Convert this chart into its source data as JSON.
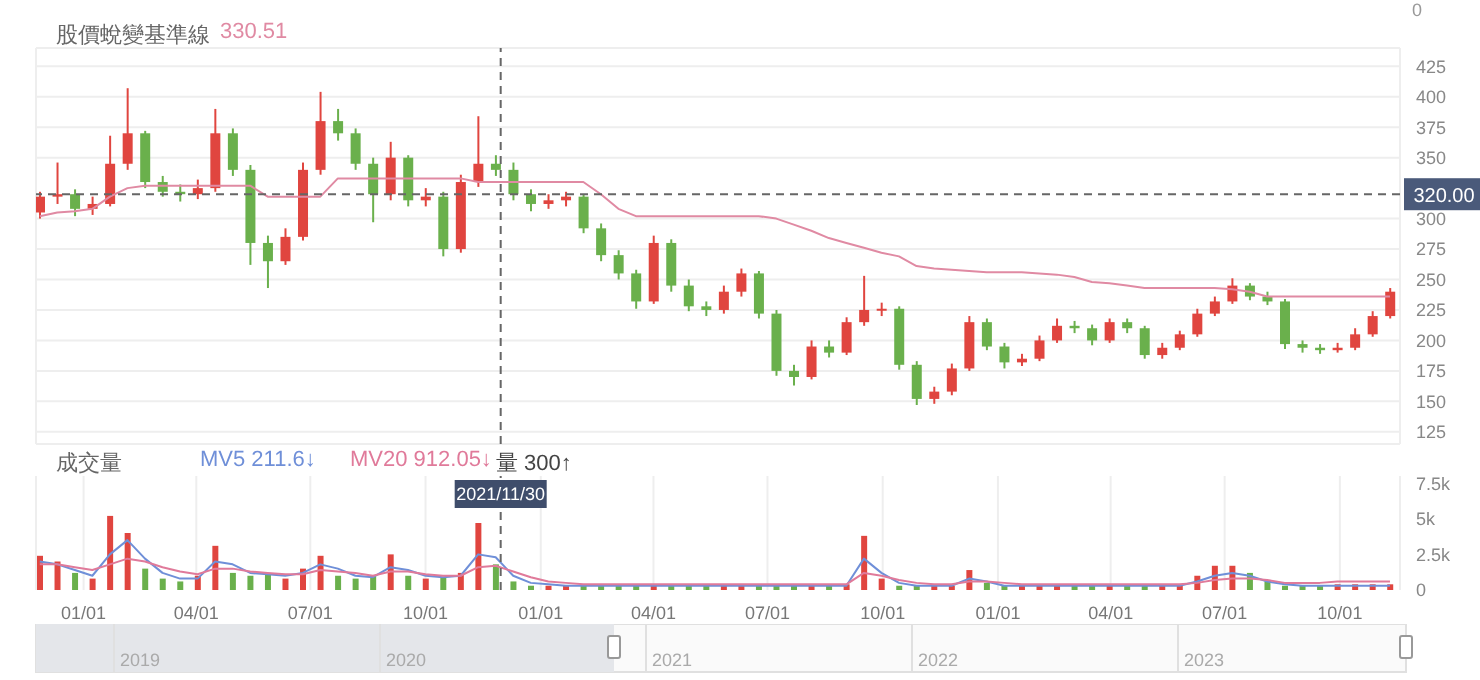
{
  "chart_data": [
    {
      "type": "candlestick",
      "title": "股價蛻變基準線",
      "annotations": [
        "330.51",
        "0"
      ],
      "x": [
        "2020-11-27",
        "2020-12-11",
        "2020-12-25",
        "2021-01-08",
        "2021-01-22",
        "2021-02-05",
        "2021-02-19",
        "2021-03-05",
        "2021-03-19",
        "2021-04-02",
        "2021-04-16",
        "2021-04-30",
        "2021-05-14",
        "2021-05-28",
        "2021-06-11",
        "2021-06-25",
        "2021-07-09",
        "2021-07-23",
        "2021-08-06",
        "2021-08-20",
        "2021-09-03",
        "2021-09-17",
        "2021-10-01",
        "2021-10-15",
        "2021-10-29",
        "2021-11-12",
        "2021-11-26",
        "2021-12-10",
        "2021-12-24",
        "2022-01-07",
        "2022-01-21",
        "2022-02-04",
        "2022-02-18",
        "2022-03-04",
        "2022-03-18",
        "2022-04-01",
        "2022-04-15",
        "2022-04-29",
        "2022-05-13",
        "2022-05-27",
        "2022-06-10",
        "2022-06-24",
        "2022-07-08",
        "2022-07-22",
        "2022-08-05",
        "2022-08-19",
        "2022-09-02",
        "2022-09-16",
        "2022-09-30",
        "2022-10-14",
        "2022-10-28",
        "2022-11-11",
        "2022-11-25",
        "2022-12-09",
        "2022-12-23",
        "2023-01-06",
        "2023-01-20",
        "2023-02-03",
        "2023-02-17",
        "2023-03-03",
        "2023-03-17",
        "2023-03-31",
        "2023-04-14",
        "2023-04-28",
        "2023-05-12",
        "2023-05-26",
        "2023-06-09",
        "2023-06-23",
        "2023-07-07",
        "2023-07-21",
        "2023-08-04",
        "2023-08-18",
        "2023-09-01",
        "2023-09-15",
        "2023-09-29",
        "2023-10-13",
        "2023-10-27",
        "2023-11-10"
      ],
      "ohlc": [
        [
          305,
          322,
          300,
          318
        ],
        [
          318,
          346,
          312,
          320
        ],
        [
          320,
          324,
          302,
          308
        ],
        [
          308,
          318,
          303,
          312
        ],
        [
          312,
          368,
          310,
          345
        ],
        [
          345,
          407,
          340,
          370
        ],
        [
          370,
          372,
          325,
          330
        ],
        [
          330,
          335,
          318,
          322
        ],
        [
          322,
          328,
          314,
          320
        ],
        [
          320,
          332,
          316,
          325
        ],
        [
          325,
          390,
          322,
          370
        ],
        [
          370,
          374,
          335,
          340
        ],
        [
          340,
          344,
          262,
          280
        ],
        [
          280,
          286,
          243,
          265
        ],
        [
          265,
          292,
          262,
          285
        ],
        [
          285,
          346,
          282,
          340
        ],
        [
          340,
          404,
          336,
          380
        ],
        [
          380,
          390,
          364,
          370
        ],
        [
          370,
          374,
          340,
          345
        ],
        [
          345,
          350,
          297,
          320
        ],
        [
          320,
          363,
          315,
          350
        ],
        [
          350,
          352,
          310,
          315
        ],
        [
          315,
          325,
          310,
          318
        ],
        [
          318,
          322,
          269,
          275
        ],
        [
          275,
          336,
          272,
          330
        ],
        [
          330,
          384,
          326,
          345
        ],
        [
          345,
          352,
          335,
          340
        ],
        [
          340,
          346,
          315,
          320
        ],
        [
          320,
          324,
          306,
          312
        ],
        [
          312,
          320,
          308,
          315
        ],
        [
          315,
          322,
          310,
          318
        ],
        [
          318,
          320,
          288,
          292
        ],
        [
          292,
          296,
          265,
          270
        ],
        [
          270,
          274,
          250,
          255
        ],
        [
          255,
          258,
          226,
          232
        ],
        [
          232,
          286,
          230,
          280
        ],
        [
          280,
          283,
          240,
          245
        ],
        [
          245,
          250,
          224,
          228
        ],
        [
          228,
          232,
          220,
          225
        ],
        [
          225,
          245,
          222,
          240
        ],
        [
          240,
          259,
          236,
          255
        ],
        [
          255,
          257,
          218,
          222
        ],
        [
          222,
          225,
          171,
          175
        ],
        [
          175,
          180,
          163,
          170
        ],
        [
          170,
          200,
          168,
          195
        ],
        [
          195,
          200,
          186,
          190
        ],
        [
          190,
          219,
          188,
          215
        ],
        [
          215,
          253,
          212,
          225
        ],
        [
          225,
          231,
          220,
          226
        ],
        [
          226,
          228,
          176,
          180
        ],
        [
          180,
          183,
          147,
          152
        ],
        [
          152,
          162,
          148,
          158
        ],
        [
          158,
          181,
          155,
          177
        ],
        [
          177,
          220,
          175,
          215
        ],
        [
          215,
          218,
          192,
          195
        ],
        [
          195,
          198,
          177,
          182
        ],
        [
          182,
          189,
          179,
          185
        ],
        [
          185,
          204,
          183,
          200
        ],
        [
          200,
          218,
          198,
          212
        ],
        [
          212,
          216,
          206,
          210
        ],
        [
          210,
          213,
          196,
          200
        ],
        [
          200,
          218,
          198,
          215
        ],
        [
          215,
          218,
          206,
          210
        ],
        [
          210,
          212,
          185,
          188
        ],
        [
          188,
          198,
          185,
          194
        ],
        [
          194,
          208,
          192,
          205
        ],
        [
          205,
          226,
          203,
          222
        ],
        [
          222,
          236,
          220,
          232
        ],
        [
          232,
          251,
          230,
          245
        ],
        [
          245,
          247,
          233,
          236
        ],
        [
          236,
          240,
          229,
          232
        ],
        [
          232,
          234,
          193,
          197
        ],
        [
          197,
          200,
          190,
          194
        ],
        [
          194,
          197,
          189,
          192
        ],
        [
          192,
          198,
          190,
          194
        ],
        [
          194,
          210,
          192,
          205
        ],
        [
          205,
          224,
          203,
          220
        ],
        [
          220,
          243,
          218,
          240
        ]
      ],
      "colors": [
        "#e0453f",
        "#e0453f",
        "#6ab04c",
        "#e0453f",
        "#e0453f",
        "#e0453f",
        "#6ab04c",
        "#6ab04c",
        "#6ab04c",
        "#e0453f",
        "#e0453f",
        "#6ab04c",
        "#6ab04c",
        "#6ab04c",
        "#e0453f",
        "#e0453f",
        "#e0453f",
        "#6ab04c",
        "#6ab04c",
        "#6ab04c",
        "#e0453f",
        "#6ab04c",
        "#e0453f",
        "#6ab04c",
        "#e0453f",
        "#e0453f",
        "#6ab04c",
        "#6ab04c",
        "#6ab04c",
        "#e0453f",
        "#e0453f",
        "#6ab04c",
        "#6ab04c",
        "#6ab04c",
        "#6ab04c",
        "#e0453f",
        "#6ab04c",
        "#6ab04c",
        "#6ab04c",
        "#e0453f",
        "#e0453f",
        "#6ab04c",
        "#6ab04c",
        "#6ab04c",
        "#e0453f",
        "#6ab04c",
        "#e0453f",
        "#e0453f",
        "#e0453f",
        "#6ab04c",
        "#6ab04c",
        "#e0453f",
        "#e0453f",
        "#e0453f",
        "#6ab04c",
        "#6ab04c",
        "#e0453f",
        "#e0453f",
        "#e0453f",
        "#6ab04c",
        "#6ab04c",
        "#e0453f",
        "#6ab04c",
        "#6ab04c",
        "#e0453f",
        "#e0453f",
        "#e0453f",
        "#e0453f",
        "#e0453f",
        "#6ab04c",
        "#6ab04c",
        "#6ab04c",
        "#6ab04c",
        "#6ab04c",
        "#e0453f",
        "#e0453f",
        "#e0453f",
        "#e0453f"
      ],
      "series": [
        {
          "type": "line",
          "color": "#e08aa3",
          "values": [
            302,
            305,
            306,
            308,
            318,
            325,
            327,
            327,
            327,
            327,
            327,
            327,
            327,
            318,
            318,
            318,
            318,
            333,
            333,
            333,
            333,
            333,
            333,
            333,
            333,
            330,
            330,
            330,
            330,
            330,
            330,
            330,
            320,
            308,
            302,
            302,
            302,
            302,
            302,
            302,
            302,
            302,
            300,
            295,
            290,
            284,
            280,
            276,
            272,
            269,
            261,
            259,
            258,
            257,
            256,
            256,
            256,
            255,
            254,
            252,
            248,
            247,
            245,
            243,
            243,
            243,
            243,
            243,
            242,
            240,
            236,
            236,
            236,
            236,
            236,
            236,
            236,
            236
          ]
        }
      ],
      "xlim": [
        "2020-11-24",
        "2023-11-18"
      ],
      "xticks": [
        {
          "value": "2021-01-01",
          "label": null
        },
        {
          "value": "2021-04-01",
          "label": null
        },
        {
          "value": "2021-07-01",
          "label": null
        },
        {
          "value": "2021-10-01",
          "label": null
        },
        {
          "value": "2022-01-01",
          "label": null
        },
        {
          "value": "2022-04-01",
          "label": null
        },
        {
          "value": "2022-07-01",
          "label": null
        },
        {
          "value": "2022-10-01",
          "label": null
        },
        {
          "value": "2023-01-01",
          "label": null
        },
        {
          "value": "2023-04-01",
          "label": null
        },
        {
          "value": "2023-07-01",
          "label": null
        },
        {
          "value": "2023-10-01",
          "label": null
        }
      ],
      "tick_labels": "y",
      "ylim": [
        115,
        440
      ],
      "yticks": [
        125,
        150,
        175,
        200,
        225,
        250,
        275,
        300,
        350,
        375,
        400,
        425
      ],
      "grid": true,
      "ref_lines": [
        {
          "axis": "y",
          "value": 320,
          "label": "320.00",
          "line_style": "dashed"
        },
        {
          "axis": "x",
          "value": "2021-11-30",
          "line_style": "dashed"
        }
      ]
    },
    {
      "type": "bar",
      "title": "成交量",
      "annotations": [
        "MV5 211.6↓",
        "MV20 912.05↓",
        "量 300↑",
        "2019",
        "2020",
        "2021",
        "2022",
        "2023"
      ],
      "x": [
        "2020-11-27",
        "2020-12-11",
        "2020-12-25",
        "2021-01-08",
        "2021-01-22",
        "2021-02-05",
        "2021-02-19",
        "2021-03-05",
        "2021-03-19",
        "2021-04-02",
        "2021-04-16",
        "2021-04-30",
        "2021-05-14",
        "2021-05-28",
        "2021-06-11",
        "2021-06-25",
        "2021-07-09",
        "2021-07-23",
        "2021-08-06",
        "2021-08-20",
        "2021-09-03",
        "2021-09-17",
        "2021-10-01",
        "2021-10-15",
        "2021-10-29",
        "2021-11-12",
        "2021-11-26",
        "2021-12-10",
        "2021-12-24",
        "2022-01-07",
        "2022-01-21",
        "2022-02-04",
        "2022-02-18",
        "2022-03-04",
        "2022-03-18",
        "2022-04-01",
        "2022-04-15",
        "2022-04-29",
        "2022-05-13",
        "2022-05-27",
        "2022-06-10",
        "2022-06-24",
        "2022-07-08",
        "2022-07-22",
        "2022-08-05",
        "2022-08-19",
        "2022-09-02",
        "2022-09-16",
        "2022-09-30",
        "2022-10-14",
        "2022-10-28",
        "2022-11-11",
        "2022-11-25",
        "2022-12-09",
        "2022-12-23",
        "2023-01-06",
        "2023-01-20",
        "2023-02-03",
        "2023-02-17",
        "2023-03-03",
        "2023-03-17",
        "2023-03-31",
        "2023-04-14",
        "2023-04-28",
        "2023-05-12",
        "2023-05-26",
        "2023-06-09",
        "2023-06-23",
        "2023-07-07",
        "2023-07-21",
        "2023-08-04",
        "2023-08-18",
        "2023-09-01",
        "2023-09-15",
        "2023-09-29",
        "2023-10-13",
        "2023-10-27",
        "2023-11-10"
      ],
      "series": [
        {
          "type": "bar",
          "colors": [
            "#e0453f",
            "#e0453f",
            "#6ab04c",
            "#e0453f",
            "#e0453f",
            "#e0453f",
            "#6ab04c",
            "#6ab04c",
            "#6ab04c",
            "#e0453f",
            "#e0453f",
            "#6ab04c",
            "#6ab04c",
            "#6ab04c",
            "#e0453f",
            "#e0453f",
            "#e0453f",
            "#6ab04c",
            "#6ab04c",
            "#6ab04c",
            "#e0453f",
            "#6ab04c",
            "#e0453f",
            "#6ab04c",
            "#e0453f",
            "#e0453f",
            "#6ab04c",
            "#6ab04c",
            "#6ab04c",
            "#e0453f",
            "#e0453f",
            "#6ab04c",
            "#6ab04c",
            "#6ab04c",
            "#6ab04c",
            "#e0453f",
            "#6ab04c",
            "#6ab04c",
            "#6ab04c",
            "#e0453f",
            "#e0453f",
            "#6ab04c",
            "#6ab04c",
            "#6ab04c",
            "#e0453f",
            "#6ab04c",
            "#e0453f",
            "#e0453f",
            "#e0453f",
            "#6ab04c",
            "#6ab04c",
            "#e0453f",
            "#e0453f",
            "#e0453f",
            "#6ab04c",
            "#6ab04c",
            "#e0453f",
            "#e0453f",
            "#e0453f",
            "#6ab04c",
            "#6ab04c",
            "#e0453f",
            "#6ab04c",
            "#6ab04c",
            "#e0453f",
            "#e0453f",
            "#e0453f",
            "#e0453f",
            "#e0453f",
            "#6ab04c",
            "#6ab04c",
            "#6ab04c",
            "#6ab04c",
            "#6ab04c",
            "#e0453f",
            "#e0453f",
            "#e0453f",
            "#e0453f"
          ],
          "values": [
            2400,
            2000,
            1200,
            800,
            5200,
            4000,
            1500,
            800,
            600,
            1000,
            3100,
            1200,
            1000,
            1200,
            800,
            1500,
            2400,
            1000,
            800,
            1000,
            2500,
            1000,
            800,
            900,
            1200,
            4700,
            1800,
            600,
            300,
            300,
            300,
            300,
            300,
            300,
            300,
            300,
            300,
            300,
            300,
            400,
            300,
            300,
            300,
            300,
            300,
            300,
            400,
            3800,
            800,
            300,
            300,
            300,
            300,
            1400,
            500,
            300,
            300,
            300,
            300,
            300,
            300,
            300,
            300,
            300,
            300,
            300,
            1000,
            1700,
            1700,
            1200,
            600,
            300,
            300,
            300,
            400,
            400,
            400,
            400
          ]
        },
        {
          "type": "line",
          "color": "#6f8fd8",
          "values": [
            2000,
            1800,
            1400,
            1000,
            2500,
            3500,
            2200,
            1200,
            800,
            800,
            2000,
            1800,
            1200,
            1100,
            1000,
            1200,
            1800,
            1500,
            1000,
            900,
            1600,
            1400,
            1000,
            900,
            1000,
            2500,
            2300,
            1000,
            500,
            400,
            300,
            300,
            300,
            300,
            300,
            300,
            300,
            300,
            300,
            300,
            300,
            300,
            300,
            300,
            300,
            300,
            300,
            2200,
            1200,
            500,
            300,
            300,
            300,
            800,
            600,
            300,
            300,
            300,
            300,
            300,
            300,
            300,
            300,
            300,
            300,
            300,
            600,
            1000,
            1200,
            1000,
            600,
            400,
            300,
            300,
            300,
            300,
            300,
            300
          ]
        },
        {
          "type": "line",
          "color": "#e07a9a",
          "values": [
            1800,
            1800,
            1600,
            1400,
            1800,
            2200,
            2000,
            1600,
            1300,
            1100,
            1500,
            1500,
            1300,
            1200,
            1100,
            1100,
            1400,
            1300,
            1200,
            1000,
            1300,
            1300,
            1100,
            1000,
            1000,
            1600,
            1700,
            1300,
            900,
            600,
            500,
            400,
            400,
            400,
            400,
            400,
            400,
            400,
            400,
            400,
            400,
            400,
            400,
            400,
            400,
            400,
            400,
            1200,
            1000,
            700,
            500,
            400,
            400,
            600,
            600,
            500,
            400,
            400,
            400,
            400,
            400,
            400,
            400,
            400,
            400,
            400,
            500,
            700,
            800,
            800,
            700,
            500,
            500,
            500,
            600,
            600,
            600,
            600
          ]
        }
      ],
      "xlim": [
        "2020-11-24",
        "2023-11-18"
      ],
      "xticks": [
        {
          "value": "2021-01-01",
          "label": "01/01"
        },
        {
          "value": "2021-04-01",
          "label": "04/01"
        },
        {
          "value": "2021-07-01",
          "label": "07/01"
        },
        {
          "value": "2021-10-01",
          "label": "10/01"
        },
        {
          "value": "2022-01-01",
          "label": "01/01"
        },
        {
          "value": "2022-04-01",
          "label": "04/01"
        },
        {
          "value": "2022-07-01",
          "label": "07/01"
        },
        {
          "value": "2022-10-01",
          "label": "10/01"
        },
        {
          "value": "2023-01-01",
          "label": "01/01"
        },
        {
          "value": "2023-04-01",
          "label": "04/01"
        },
        {
          "value": "2023-07-01",
          "label": "07/01"
        },
        {
          "value": "2023-10-01",
          "label": "10/01"
        }
      ],
      "ylim": [
        0,
        8000
      ],
      "yticks": [
        0,
        {
          "value": 2500,
          "label": "2.5k"
        },
        {
          "value": 5000,
          "label": "5k"
        },
        {
          "value": 7500,
          "label": "7.5k"
        }
      ],
      "grid": "x",
      "ref_lines": [
        {
          "axis": "x",
          "value": "2021-11-30",
          "label": "2021/11/30",
          "line_style": "dashed"
        }
      ]
    }
  ]
}
